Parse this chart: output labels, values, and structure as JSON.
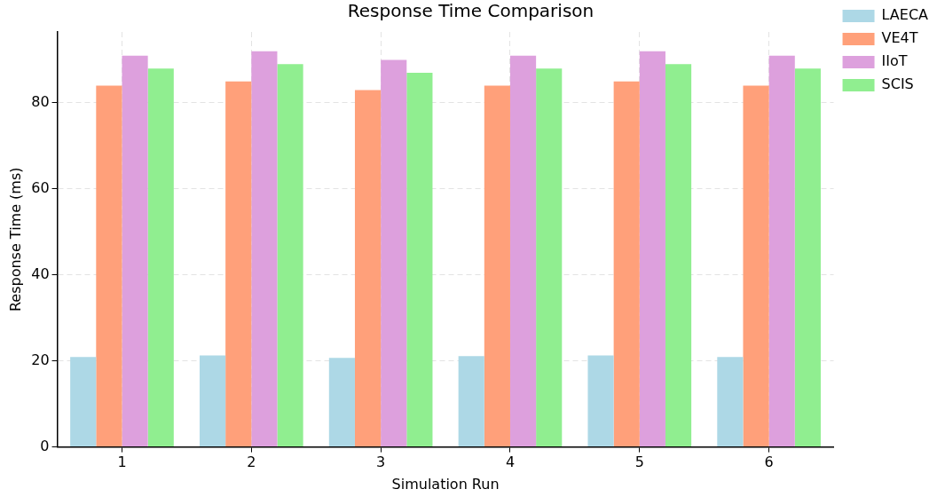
{
  "chart_data": {
    "type": "bar",
    "title": "Response Time Comparison",
    "xlabel": "Simulation Run",
    "ylabel": "Response Time (ms)",
    "categories": [
      "1",
      "2",
      "3",
      "4",
      "5",
      "6"
    ],
    "series": [
      {
        "name": "LAECA",
        "color": "#add8e6",
        "values": [
          20.9,
          21.3,
          20.7,
          21.1,
          21.3,
          20.9
        ]
      },
      {
        "name": "VE4T",
        "color": "#ffa07a",
        "values": [
          84,
          85,
          83,
          84,
          85,
          84
        ]
      },
      {
        "name": "IIoT",
        "color": "#dda0dd",
        "values": [
          91,
          92,
          90,
          91,
          92,
          91
        ]
      },
      {
        "name": "SCIS",
        "color": "#90ee90",
        "values": [
          88,
          89,
          87,
          88,
          89,
          88
        ]
      }
    ],
    "ylim": [
      0,
      96.5
    ],
    "yticks": [
      0,
      20,
      40,
      60,
      80
    ],
    "grid": true,
    "legend": "top right"
  }
}
